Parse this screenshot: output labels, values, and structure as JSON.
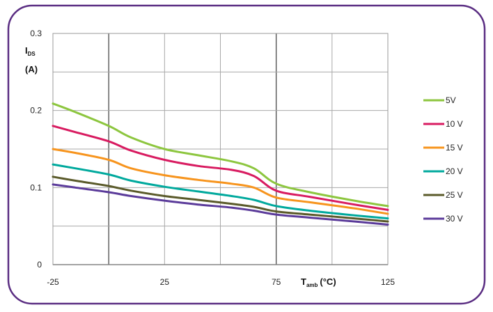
{
  "chart_data": {
    "type": "line",
    "ylabel_main": "I",
    "ylabel_sub": "DS",
    "ylabel_unit": "(A)",
    "xlabel_main": "T",
    "xlabel_sub": "amb",
    "xlabel_unit": "(°C)",
    "xlim": [
      -25,
      125
    ],
    "ylim": [
      0,
      0.3
    ],
    "x_ticks": [
      -25,
      25,
      75,
      125
    ],
    "y_ticks": [
      0,
      0.1,
      0.2,
      0.3
    ],
    "x_tick_labels": [
      "-25",
      "25",
      "75",
      "125"
    ],
    "y_tick_labels": [
      "0",
      "0.1",
      "0.2",
      "0.3"
    ],
    "x_grid": [
      -25,
      0,
      25,
      50,
      75,
      100,
      125
    ],
    "y_grid": [
      0.05,
      0.1,
      0.15,
      0.2,
      0.25,
      0.3
    ],
    "grid": true,
    "legend_position": "right",
    "series": [
      {
        "name": "5V",
        "color": "#8dc63f",
        "x": [
          -25,
          -15,
          0,
          10,
          25,
          40,
          55,
          65,
          75,
          90,
          110,
          125
        ],
        "y": [
          0.209,
          0.198,
          0.18,
          0.165,
          0.15,
          0.142,
          0.134,
          0.125,
          0.105,
          0.094,
          0.083,
          0.076
        ]
      },
      {
        "name": "10 V",
        "color": "#d81b60",
        "x": [
          -25,
          -15,
          0,
          10,
          25,
          40,
          55,
          65,
          75,
          90,
          110,
          125
        ],
        "y": [
          0.18,
          0.172,
          0.16,
          0.148,
          0.136,
          0.128,
          0.123,
          0.115,
          0.096,
          0.088,
          0.078,
          0.071
        ]
      },
      {
        "name": "15 V",
        "color": "#f7941d",
        "x": [
          -25,
          -15,
          0,
          10,
          25,
          40,
          55,
          65,
          75,
          90,
          110,
          125
        ],
        "y": [
          0.15,
          0.145,
          0.136,
          0.125,
          0.116,
          0.11,
          0.105,
          0.1,
          0.087,
          0.081,
          0.073,
          0.066
        ]
      },
      {
        "name": "20 V",
        "color": "#00a99d",
        "x": [
          -25,
          -15,
          0,
          10,
          25,
          40,
          55,
          65,
          75,
          90,
          110,
          125
        ],
        "y": [
          0.13,
          0.125,
          0.117,
          0.109,
          0.101,
          0.095,
          0.089,
          0.084,
          0.076,
          0.07,
          0.064,
          0.06
        ]
      },
      {
        "name": "25 V",
        "color": "#5a5a2a",
        "x": [
          -25,
          -15,
          0,
          10,
          25,
          40,
          55,
          65,
          75,
          90,
          110,
          125
        ],
        "y": [
          0.114,
          0.109,
          0.102,
          0.096,
          0.089,
          0.084,
          0.079,
          0.075,
          0.069,
          0.065,
          0.06,
          0.056
        ]
      },
      {
        "name": "30 V",
        "color": "#5b3b9a",
        "x": [
          -25,
          -15,
          0,
          10,
          25,
          40,
          55,
          65,
          75,
          90,
          110,
          125
        ],
        "y": [
          0.104,
          0.1,
          0.094,
          0.089,
          0.083,
          0.078,
          0.074,
          0.07,
          0.065,
          0.061,
          0.056,
          0.052
        ]
      }
    ]
  },
  "frame_color": "#5a2d82"
}
